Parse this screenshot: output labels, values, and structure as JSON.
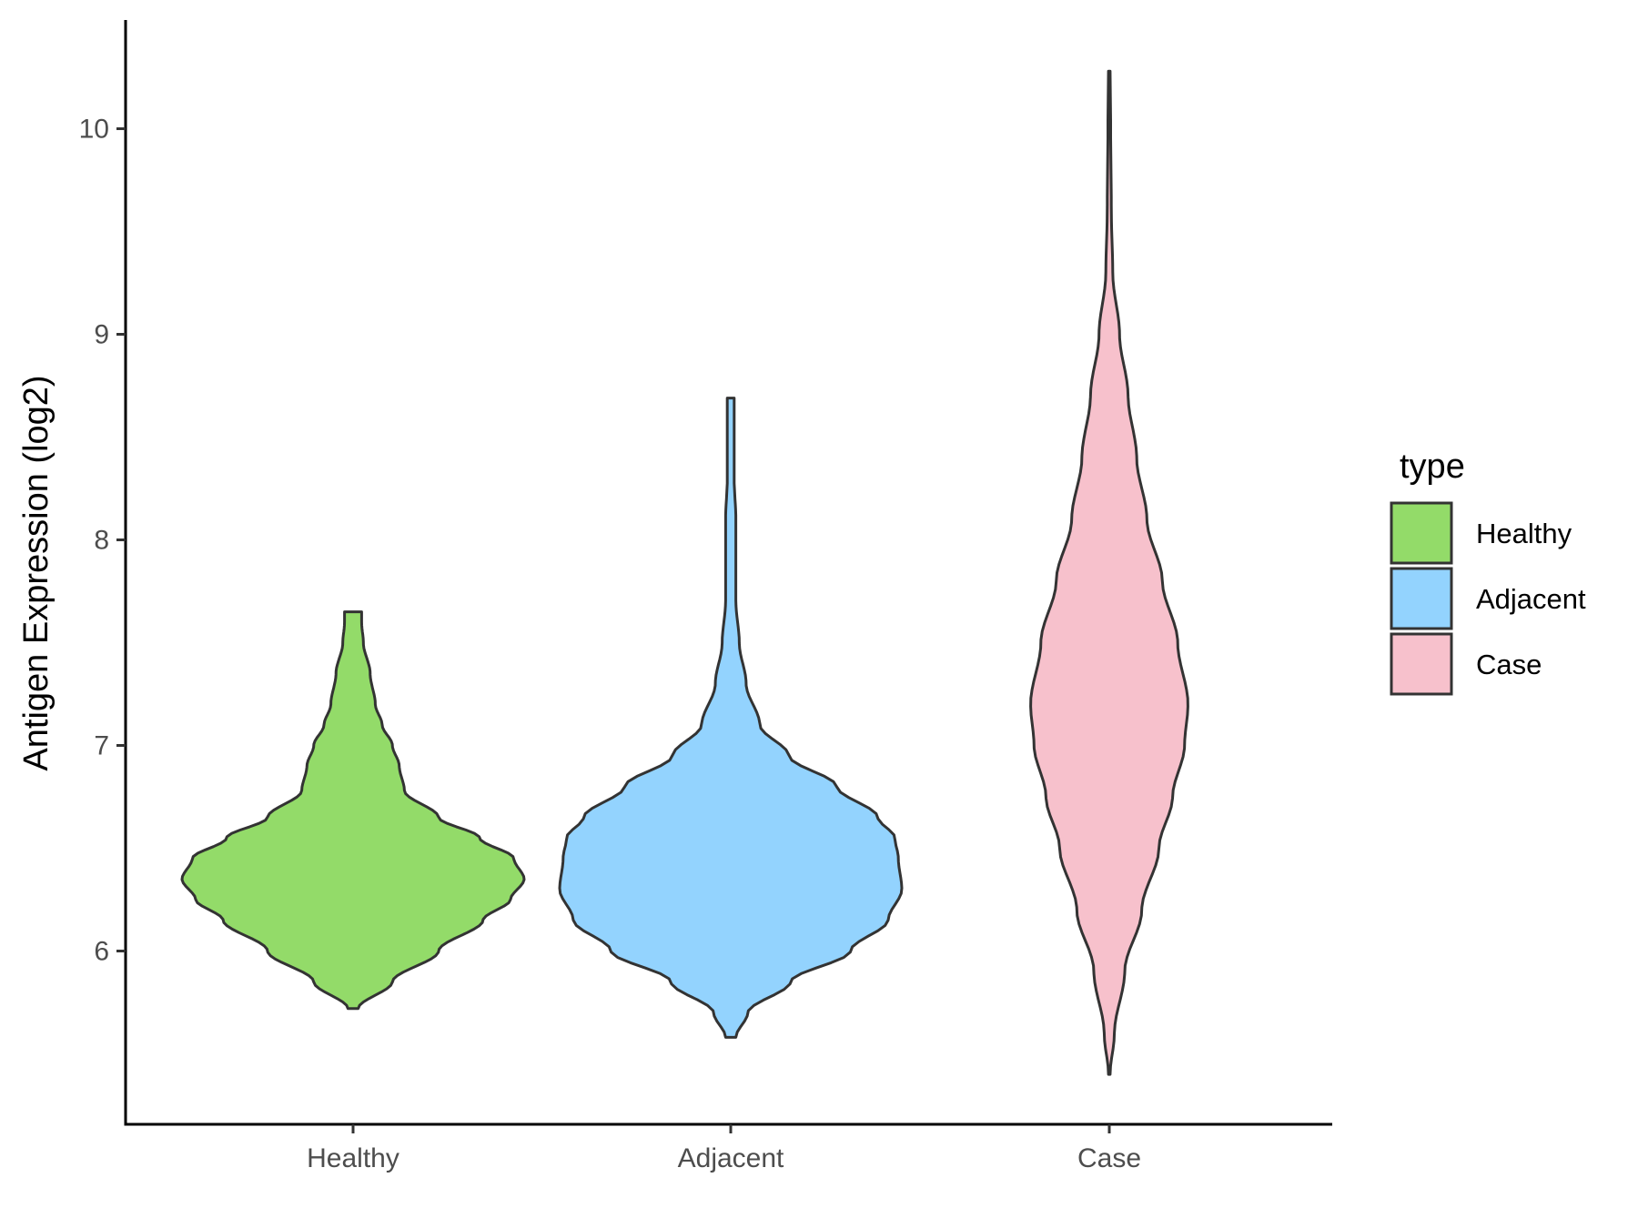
{
  "chart_data": {
    "type": "violin",
    "title": "",
    "xlabel": "",
    "ylabel": "Antigen Expression (log2)",
    "ylim": [
      5.3,
      10.5
    ],
    "yticks": [
      6,
      7,
      8,
      9,
      10
    ],
    "categories": [
      "Healthy",
      "Adjacent",
      "Case"
    ],
    "grid": false,
    "legend": {
      "title": "type",
      "position": "right"
    },
    "series": [
      {
        "name": "Healthy",
        "color": "#93db69",
        "y_min": 5.72,
        "y_max": 7.65,
        "density": [
          [
            5.72,
            0.03
          ],
          [
            5.85,
            0.23
          ],
          [
            6.0,
            0.5
          ],
          [
            6.15,
            0.76
          ],
          [
            6.25,
            0.92
          ],
          [
            6.35,
            1.0
          ],
          [
            6.45,
            0.94
          ],
          [
            6.55,
            0.74
          ],
          [
            6.65,
            0.5
          ],
          [
            6.78,
            0.3
          ],
          [
            6.9,
            0.27
          ],
          [
            7.0,
            0.23
          ],
          [
            7.1,
            0.17
          ],
          [
            7.2,
            0.13
          ],
          [
            7.35,
            0.1
          ],
          [
            7.5,
            0.06
          ],
          [
            7.6,
            0.05
          ],
          [
            7.65,
            0.05
          ]
        ]
      },
      {
        "name": "Adjacent",
        "color": "#93d3fe",
        "y_min": 5.58,
        "y_max": 8.69,
        "density": [
          [
            5.58,
            0.03
          ],
          [
            5.7,
            0.1
          ],
          [
            5.85,
            0.35
          ],
          [
            6.0,
            0.7
          ],
          [
            6.15,
            0.92
          ],
          [
            6.3,
            1.0
          ],
          [
            6.45,
            0.98
          ],
          [
            6.55,
            0.96
          ],
          [
            6.65,
            0.86
          ],
          [
            6.8,
            0.62
          ],
          [
            6.95,
            0.34
          ],
          [
            7.1,
            0.17
          ],
          [
            7.3,
            0.09
          ],
          [
            7.5,
            0.05
          ],
          [
            7.7,
            0.03
          ],
          [
            7.9,
            0.03
          ],
          [
            8.1,
            0.03
          ],
          [
            8.3,
            0.02
          ],
          [
            8.45,
            0.02
          ],
          [
            8.6,
            0.02
          ],
          [
            8.69,
            0.02
          ]
        ]
      },
      {
        "name": "Case",
        "color": "#f7c1cc",
        "y_min": 5.4,
        "y_max": 10.28,
        "density": [
          [
            5.4,
            0.005
          ],
          [
            5.6,
            0.03
          ],
          [
            5.9,
            0.09
          ],
          [
            6.2,
            0.19
          ],
          [
            6.5,
            0.29
          ],
          [
            6.75,
            0.37
          ],
          [
            7.0,
            0.44
          ],
          [
            7.2,
            0.46
          ],
          [
            7.5,
            0.4
          ],
          [
            7.8,
            0.31
          ],
          [
            8.1,
            0.22
          ],
          [
            8.4,
            0.16
          ],
          [
            8.7,
            0.11
          ],
          [
            9.0,
            0.06
          ],
          [
            9.3,
            0.02
          ],
          [
            9.6,
            0.012
          ],
          [
            10.0,
            0.008
          ],
          [
            10.28,
            0.005
          ]
        ]
      }
    ]
  }
}
